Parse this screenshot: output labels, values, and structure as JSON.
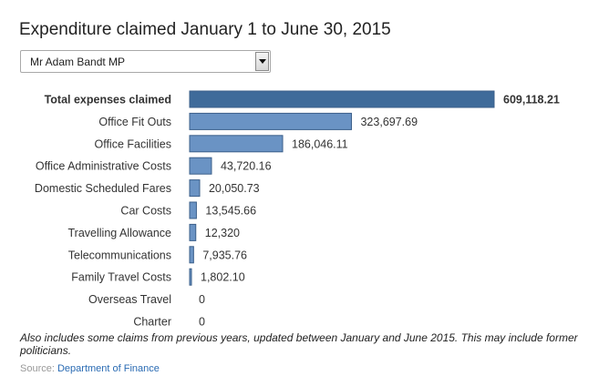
{
  "page": {
    "title": "Expenditure claimed January 1 to June 30, 2015",
    "note": "Also includes some claims from previous years, updated between January and June 2015. This may include former politicians.",
    "source_label": "Source:",
    "source_link": "Department of Finance"
  },
  "selector": {
    "value": "Mr Adam Bandt MP",
    "icon": "chevron-down-icon"
  },
  "colors": {
    "total_bar": "#3f6b9a",
    "bar": "#6a93c4",
    "bar_border": "#3b5f8a"
  },
  "chart_data": {
    "type": "bar",
    "orientation": "horizontal",
    "title": "",
    "xlabel": "",
    "ylabel": "",
    "categories": [
      "Total expenses claimed",
      "Office Fit Outs",
      "Office Facilities",
      "Office Administrative Costs",
      "Domestic Scheduled Fares",
      "Car Costs",
      "Travelling Allowance",
      "Telecommunications",
      "Family Travel Costs",
      "Overseas Travel",
      "Charter"
    ],
    "values": [
      609118.21,
      323697.69,
      186046.11,
      43720.16,
      20050.73,
      13545.66,
      12320,
      7935.76,
      1802.1,
      0,
      0
    ],
    "value_labels": [
      "609,118.21",
      "323,697.69",
      "186,046.11",
      "43,720.16",
      "20,050.73",
      "13,545.66",
      "12,320",
      "7,935.76",
      "1,802.10",
      "0",
      "0"
    ],
    "xlim": [
      0,
      609118.21
    ],
    "grid": false,
    "legend": "none"
  }
}
